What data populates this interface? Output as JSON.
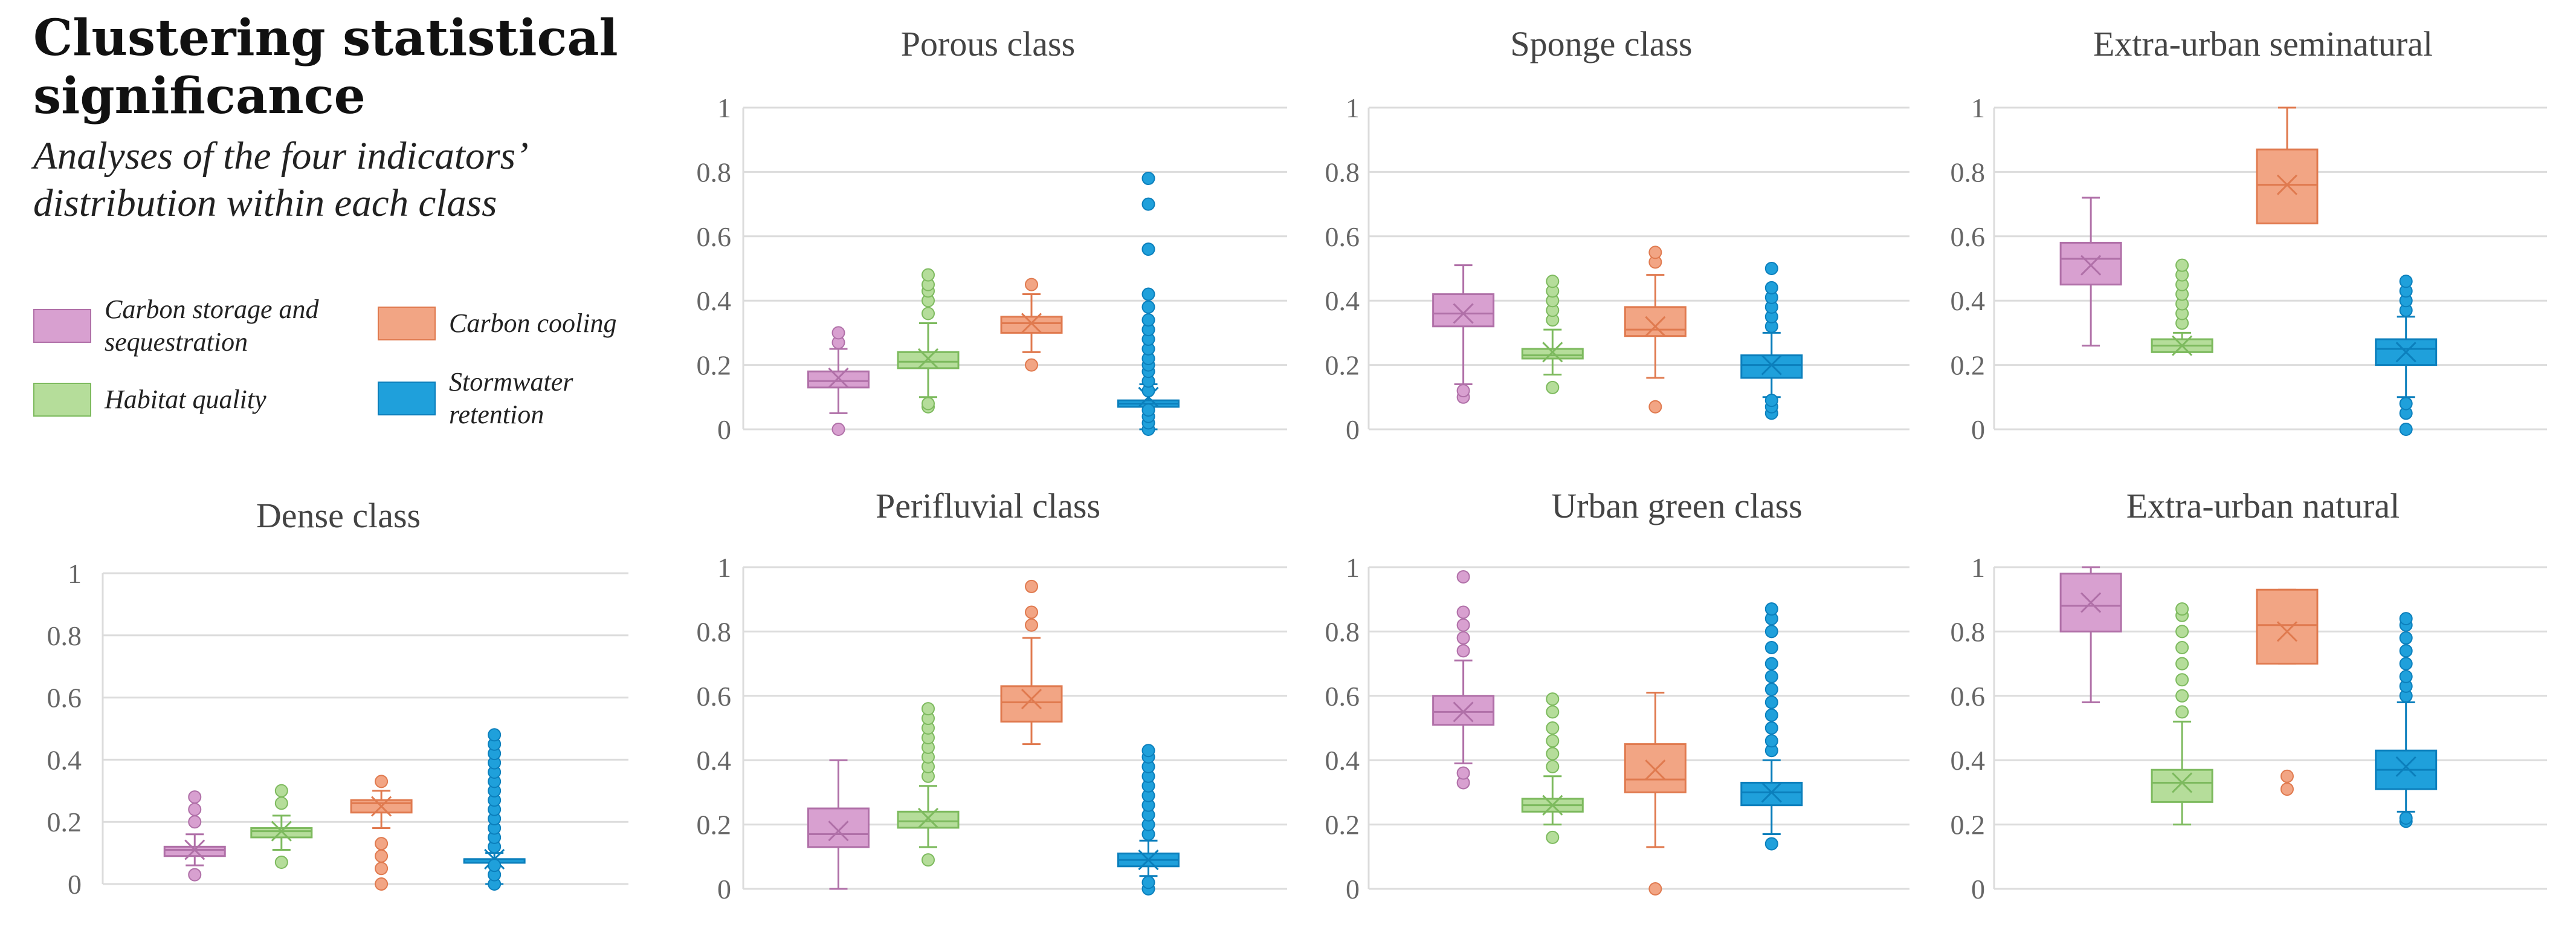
{
  "header": {
    "title_line1": "Clustering statistical",
    "title_line2": "significance",
    "subtitle_line1": "Analyses of the four indicators’",
    "subtitle_line2": "distribution within each class"
  },
  "legend": [
    {
      "label": "Carbon storage and sequestration",
      "color": "#D8A0D0",
      "stroke": "#B070A8"
    },
    {
      "label": "Carbon cooling",
      "color": "#F2A584",
      "stroke": "#E07A4F"
    },
    {
      "label": "Habitat quality",
      "color": "#B5DD9A",
      "stroke": "#7DBA5E"
    },
    {
      "label": "Stormwater retention",
      "color": "#1FA0DB",
      "stroke": "#0B7FBC"
    }
  ],
  "chart_data": [
    {
      "type": "box",
      "title": "Porous class",
      "ylim": [
        0,
        1
      ],
      "yticks": [
        "0",
        "0.2",
        "0.4",
        "0.6",
        "0.8",
        "1"
      ],
      "series": [
        {
          "name": "Carbon storage and sequestration",
          "min": 0.05,
          "q1": 0.13,
          "median": 0.15,
          "q3": 0.18,
          "max": 0.25,
          "mean": 0.16,
          "outliers": [
            0.0,
            0.27,
            0.3
          ]
        },
        {
          "name": "Habitat quality",
          "min": 0.1,
          "q1": 0.19,
          "median": 0.21,
          "q3": 0.24,
          "max": 0.33,
          "mean": 0.22,
          "outliers": [
            0.07,
            0.08,
            0.36,
            0.4,
            0.43,
            0.45,
            0.48
          ]
        },
        {
          "name": "Carbon cooling",
          "min": 0.24,
          "q1": 0.3,
          "median": 0.33,
          "q3": 0.35,
          "max": 0.42,
          "mean": 0.33,
          "outliers": [
            0.2,
            0.45
          ]
        },
        {
          "name": "Stormwater retention",
          "min": 0.0,
          "q1": 0.07,
          "median": 0.08,
          "q3": 0.09,
          "max": 0.14,
          "mean": 0.1,
          "outliers": [
            0.0,
            0.02,
            0.04,
            0.06,
            0.12,
            0.15,
            0.18,
            0.2,
            0.22,
            0.25,
            0.28,
            0.31,
            0.34,
            0.38,
            0.42,
            0.56,
            0.7,
            0.78
          ]
        }
      ]
    },
    {
      "type": "box",
      "title": "Sponge class",
      "ylim": [
        0,
        1
      ],
      "yticks": [
        "0",
        "0.2",
        "0.4",
        "0.6",
        "0.8",
        "1"
      ],
      "series": [
        {
          "name": "Carbon storage and sequestration",
          "min": 0.14,
          "q1": 0.32,
          "median": 0.36,
          "q3": 0.42,
          "max": 0.51,
          "mean": 0.36,
          "outliers": [
            0.1,
            0.12
          ]
        },
        {
          "name": "Habitat quality",
          "min": 0.17,
          "q1": 0.22,
          "median": 0.23,
          "q3": 0.25,
          "max": 0.31,
          "mean": 0.24,
          "outliers": [
            0.13,
            0.34,
            0.37,
            0.4,
            0.43,
            0.46
          ]
        },
        {
          "name": "Carbon cooling",
          "min": 0.16,
          "q1": 0.29,
          "median": 0.31,
          "q3": 0.38,
          "max": 0.48,
          "mean": 0.32,
          "outliers": [
            0.07,
            0.52,
            0.55
          ]
        },
        {
          "name": "Stormwater retention",
          "min": 0.1,
          "q1": 0.16,
          "median": 0.2,
          "q3": 0.23,
          "max": 0.3,
          "mean": 0.2,
          "outliers": [
            0.05,
            0.07,
            0.09,
            0.32,
            0.35,
            0.38,
            0.41,
            0.44,
            0.5
          ]
        }
      ]
    },
    {
      "type": "box",
      "title": "Extra-urban seminatural",
      "ylim": [
        0,
        1
      ],
      "yticks": [
        "0",
        "0.2",
        "0.4",
        "0.6",
        "0.8",
        "1"
      ],
      "series": [
        {
          "name": "Carbon storage and sequestration",
          "min": 0.26,
          "q1": 0.45,
          "median": 0.53,
          "q3": 0.58,
          "max": 0.72,
          "mean": 0.51,
          "outliers": []
        },
        {
          "name": "Habitat quality",
          "min": 0.24,
          "q1": 0.24,
          "median": 0.26,
          "q3": 0.28,
          "max": 0.3,
          "mean": 0.26,
          "outliers": [
            0.33,
            0.36,
            0.39,
            0.42,
            0.45,
            0.48,
            0.51
          ]
        },
        {
          "name": "Carbon cooling",
          "min": 0.64,
          "q1": 0.64,
          "median": 0.76,
          "q3": 0.87,
          "max": 1.0,
          "mean": 0.76,
          "outliers": []
        },
        {
          "name": "Stormwater retention",
          "min": 0.1,
          "q1": 0.2,
          "median": 0.25,
          "q3": 0.28,
          "max": 0.35,
          "mean": 0.24,
          "outliers": [
            0.0,
            0.05,
            0.08,
            0.37,
            0.4,
            0.43,
            0.46
          ]
        }
      ]
    },
    {
      "type": "box",
      "title": "Dense class",
      "ylim": [
        0,
        1
      ],
      "yticks": [
        "0",
        "0.2",
        "0.4",
        "0.6",
        "0.8",
        "1"
      ],
      "series": [
        {
          "name": "Carbon storage and sequestration",
          "min": 0.06,
          "q1": 0.09,
          "median": 0.11,
          "q3": 0.12,
          "max": 0.16,
          "mean": 0.11,
          "outliers": [
            0.03,
            0.2,
            0.24,
            0.28
          ]
        },
        {
          "name": "Habitat quality",
          "min": 0.11,
          "q1": 0.15,
          "median": 0.17,
          "q3": 0.18,
          "max": 0.22,
          "mean": 0.17,
          "outliers": [
            0.07,
            0.26,
            0.3
          ]
        },
        {
          "name": "Carbon cooling",
          "min": 0.18,
          "q1": 0.23,
          "median": 0.26,
          "q3": 0.27,
          "max": 0.3,
          "mean": 0.25,
          "outliers": [
            0.0,
            0.05,
            0.09,
            0.13,
            0.33
          ]
        },
        {
          "name": "Stormwater retention",
          "min": 0.0,
          "q1": 0.07,
          "median": 0.08,
          "q3": 0.08,
          "max": 0.1,
          "mean": 0.08,
          "outliers": [
            0.0,
            0.03,
            0.06,
            0.12,
            0.15,
            0.18,
            0.21,
            0.24,
            0.27,
            0.3,
            0.33,
            0.36,
            0.39,
            0.42,
            0.45,
            0.48
          ]
        }
      ]
    },
    {
      "type": "box",
      "title": "Perifluvial class",
      "ylim": [
        0,
        1
      ],
      "yticks": [
        "0",
        "0.2",
        "0.4",
        "0.6",
        "0.8",
        "1"
      ],
      "series": [
        {
          "name": "Carbon storage and sequestration",
          "min": 0.0,
          "q1": 0.13,
          "median": 0.17,
          "q3": 0.25,
          "max": 0.4,
          "mean": 0.18,
          "outliers": []
        },
        {
          "name": "Habitat quality",
          "min": 0.13,
          "q1": 0.19,
          "median": 0.21,
          "q3": 0.24,
          "max": 0.32,
          "mean": 0.22,
          "outliers": [
            0.09,
            0.35,
            0.38,
            0.41,
            0.44,
            0.47,
            0.5,
            0.53,
            0.56
          ]
        },
        {
          "name": "Carbon cooling",
          "min": 0.45,
          "q1": 0.52,
          "median": 0.58,
          "q3": 0.63,
          "max": 0.78,
          "mean": 0.59,
          "outliers": [
            0.82,
            0.86,
            0.94
          ]
        },
        {
          "name": "Stormwater retention",
          "min": 0.04,
          "q1": 0.07,
          "median": 0.09,
          "q3": 0.11,
          "max": 0.15,
          "mean": 0.09,
          "outliers": [
            0.0,
            0.02,
            0.17,
            0.2,
            0.23,
            0.26,
            0.29,
            0.32,
            0.35,
            0.38,
            0.41,
            0.43
          ]
        }
      ]
    },
    {
      "type": "box",
      "title": "Urban green class",
      "ylim": [
        0,
        1
      ],
      "yticks": [
        "0",
        "0.2",
        "0.4",
        "0.6",
        "0.8",
        "1"
      ],
      "series": [
        {
          "name": "Carbon storage and sequestration",
          "min": 0.39,
          "q1": 0.51,
          "median": 0.55,
          "q3": 0.6,
          "max": 0.71,
          "mean": 0.55,
          "outliers": [
            0.33,
            0.36,
            0.74,
            0.78,
            0.82,
            0.86,
            0.97
          ]
        },
        {
          "name": "Habitat quality",
          "min": 0.2,
          "q1": 0.24,
          "median": 0.26,
          "q3": 0.28,
          "max": 0.35,
          "mean": 0.26,
          "outliers": [
            0.16,
            0.38,
            0.42,
            0.46,
            0.5,
            0.55,
            0.59
          ]
        },
        {
          "name": "Carbon cooling",
          "min": 0.13,
          "q1": 0.3,
          "median": 0.34,
          "q3": 0.45,
          "max": 0.61,
          "mean": 0.37,
          "outliers": [
            0.0
          ]
        },
        {
          "name": "Stormwater retention",
          "min": 0.17,
          "q1": 0.26,
          "median": 0.3,
          "q3": 0.33,
          "max": 0.4,
          "mean": 0.3,
          "outliers": [
            0.14,
            0.43,
            0.46,
            0.5,
            0.54,
            0.58,
            0.62,
            0.66,
            0.7,
            0.75,
            0.8,
            0.84,
            0.87
          ]
        }
      ]
    },
    {
      "type": "box",
      "title": "Extra-urban natural",
      "ylim": [
        0,
        1
      ],
      "yticks": [
        "0",
        "0.2",
        "0.4",
        "0.6",
        "0.8",
        "1"
      ],
      "series": [
        {
          "name": "Carbon storage and sequestration",
          "min": 0.58,
          "q1": 0.8,
          "median": 0.88,
          "q3": 0.98,
          "max": 1.0,
          "mean": 0.89,
          "outliers": []
        },
        {
          "name": "Habitat quality",
          "min": 0.2,
          "q1": 0.27,
          "median": 0.33,
          "q3": 0.37,
          "max": 0.52,
          "mean": 0.33,
          "outliers": [
            0.55,
            0.6,
            0.65,
            0.7,
            0.75,
            0.8,
            0.85,
            0.87
          ]
        },
        {
          "name": "Carbon cooling",
          "min": 0.7,
          "q1": 0.7,
          "median": 0.82,
          "q3": 0.93,
          "max": 0.93,
          "mean": 0.8,
          "outliers": [
            0.31,
            0.35
          ]
        },
        {
          "name": "Stormwater retention",
          "min": 0.24,
          "q1": 0.31,
          "median": 0.37,
          "q3": 0.43,
          "max": 0.58,
          "mean": 0.38,
          "outliers": [
            0.21,
            0.22,
            0.6,
            0.63,
            0.66,
            0.7,
            0.74,
            0.78,
            0.82,
            0.84
          ]
        }
      ]
    }
  ]
}
